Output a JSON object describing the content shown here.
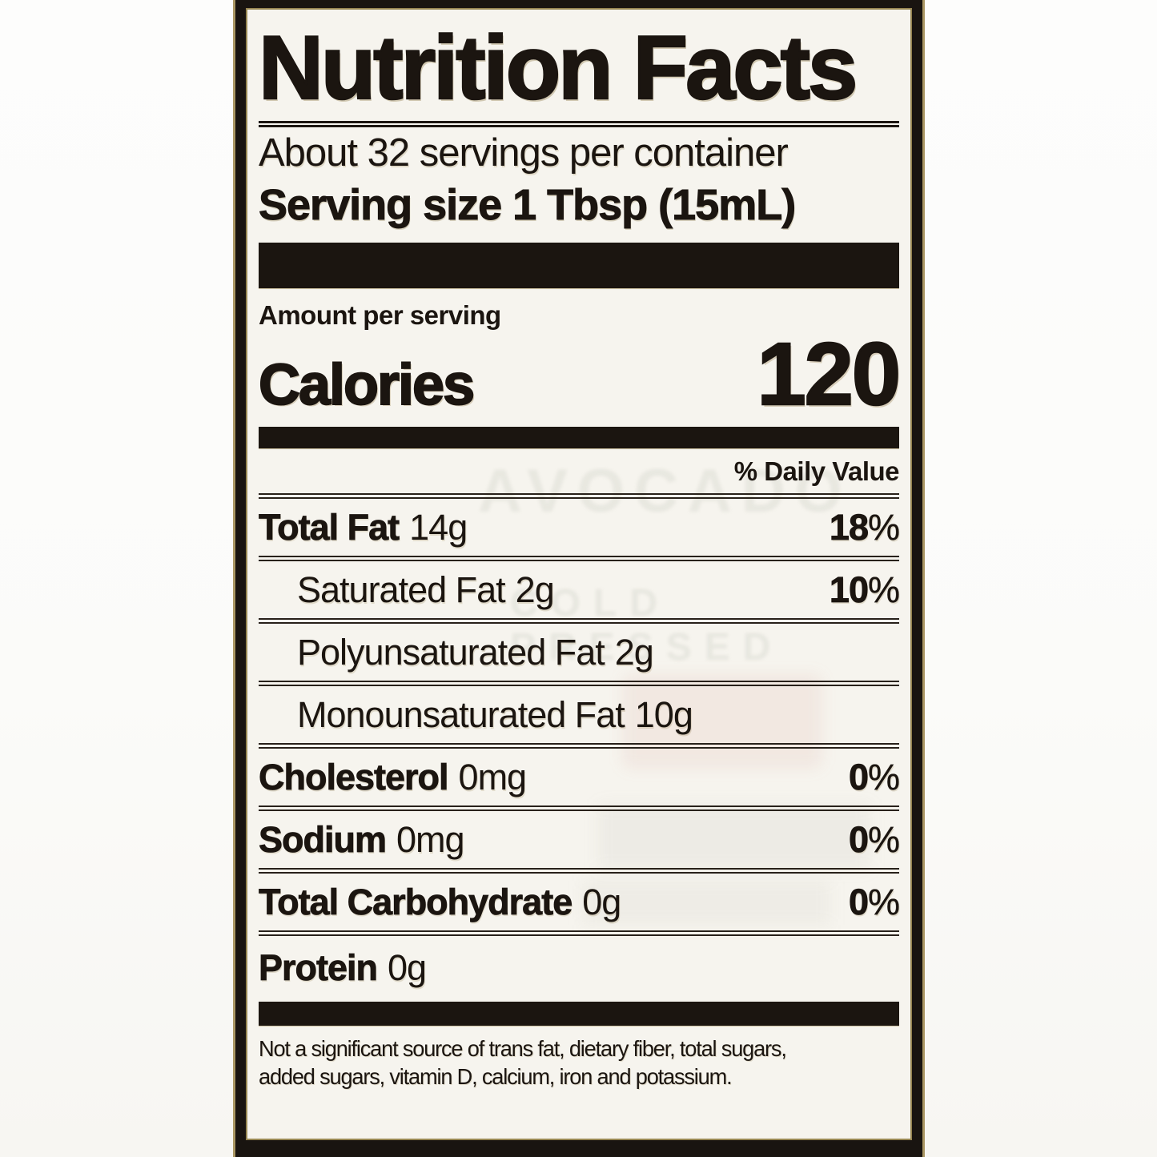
{
  "label": {
    "title": "Nutrition Facts",
    "servings_per_container": "About 32 servings per container",
    "serving_size": "Serving size 1 Tbsp (15mL)",
    "amount_per_serving": "Amount per serving",
    "calories_label": "Calories",
    "calories_value": "120",
    "daily_value_header": "% Daily Value",
    "rows": [
      {
        "name": "Total Fat",
        "amount": "14g",
        "dv": "18",
        "pct": "%"
      },
      {
        "name": "Saturated Fat",
        "amount": "2g",
        "dv": "10",
        "pct": "%"
      },
      {
        "name": "Polyunsaturated Fat",
        "amount": "2g",
        "dv": "",
        "pct": ""
      },
      {
        "name": "Monounsaturated Fat",
        "amount": "10g",
        "dv": "",
        "pct": ""
      },
      {
        "name": "Cholesterol",
        "amount": "0mg",
        "dv": "0",
        "pct": "%"
      },
      {
        "name": "Sodium",
        "amount": "0mg",
        "dv": "0",
        "pct": "%"
      },
      {
        "name": "Total Carbohydrate",
        "amount": "0g",
        "dv": "0",
        "pct": "%"
      },
      {
        "name": "Protein",
        "amount": "0g",
        "dv": "",
        "pct": ""
      }
    ],
    "footnote_lines": [
      "Not a significant source of trans fat, dietary fiber, total sugars,",
      "added sugars, vitamin D, calcium, iron and potassium."
    ],
    "colors": {
      "ink": "#1b1510",
      "paper": "#f6f4ee",
      "gold_trim": "#ab9763",
      "background": "#fdfdfc"
    }
  },
  "ghost": {
    "word1": "AVOCADO",
    "word2": "COLD PRESSED"
  }
}
